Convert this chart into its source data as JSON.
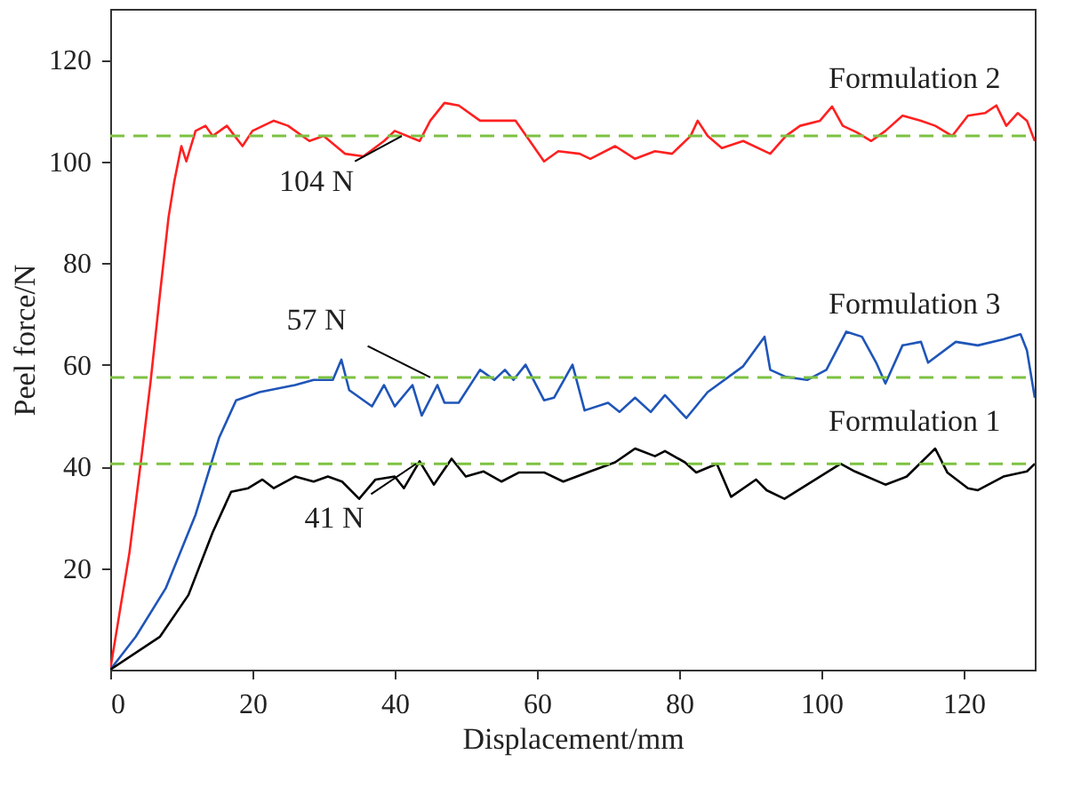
{
  "chart_data": {
    "type": "line",
    "xlabel": "Displacement/mm",
    "ylabel": "Peel force/N",
    "xlim": [
      0,
      130
    ],
    "ylim": [
      0,
      130
    ],
    "xticks": [
      0,
      20,
      40,
      60,
      80,
      100,
      120
    ],
    "yticks": [
      20,
      40,
      60,
      80,
      100,
      120
    ],
    "grid": false,
    "line_style": "solid",
    "marker": "none",
    "series": [
      {
        "name": "Formulation 2",
        "color": "#ff2020",
        "x": [
          0,
          2.7,
          4.5,
          5.7,
          7,
          8.2,
          9,
          10,
          10.7,
          12,
          13.4,
          14.4,
          16.4,
          18.6,
          20,
          23,
          25,
          28,
          30,
          33,
          35.6,
          38.5,
          40,
          43.5,
          45,
          47,
          49,
          52,
          54,
          57,
          59,
          61,
          63,
          66,
          67.5,
          71,
          73.8,
          76.6,
          79,
          81.6,
          82.6,
          84,
          86,
          89,
          92.8,
          95,
          97,
          99.8,
          101.5,
          103,
          105,
          107,
          109,
          111.4,
          114,
          116,
          118.4,
          120.6,
          123,
          124.6,
          126,
          127.6,
          128.9,
          130
        ],
        "values": [
          0,
          23,
          43,
          57,
          74,
          89,
          96,
          103,
          100,
          106,
          107,
          105,
          107,
          103,
          106,
          108,
          107,
          104,
          105,
          101.5,
          101,
          104,
          106,
          104,
          108,
          111.5,
          111,
          108,
          108,
          108,
          104,
          100,
          102,
          101.5,
          100.5,
          103,
          100.5,
          102,
          101.5,
          105,
          108,
          105,
          102.6,
          104,
          101.5,
          105,
          107,
          108,
          110.8,
          107,
          105.7,
          104,
          106,
          109,
          108,
          107,
          105,
          109,
          109.5,
          111,
          107,
          109.5,
          108,
          104
        ]
      },
      {
        "name": "Formulation 3",
        "color": "#1f55b8",
        "x": [
          0,
          3.6,
          7.8,
          12,
          15.3,
          17.7,
          21,
          26,
          28.6,
          31.3,
          32.5,
          33.6,
          36.8,
          38.5,
          40,
          42.5,
          43.8,
          46,
          47,
          49,
          52,
          54,
          55.5,
          56.7,
          58.4,
          61,
          62.4,
          65,
          66.7,
          70,
          71.6,
          73.8,
          76,
          78,
          81,
          84,
          89,
          92,
          92.8,
          95,
          98,
          100.7,
          103.5,
          105.7,
          107.7,
          109,
          111.4,
          114,
          115,
          118.9,
          122,
          125.6,
          128,
          128.9,
          130
        ],
        "values": [
          0,
          6.5,
          16,
          30.5,
          45.6,
          53,
          54.6,
          56,
          57,
          57,
          61,
          55,
          51.8,
          56,
          51.8,
          56,
          50,
          56,
          52.5,
          52.5,
          59,
          57,
          59,
          57,
          60,
          53,
          53.5,
          60,
          51,
          52.5,
          50.7,
          53.5,
          50.7,
          54,
          49.5,
          54.6,
          59.7,
          65.5,
          59,
          57.6,
          57,
          59,
          66.5,
          65.5,
          60.4,
          56.3,
          63.8,
          64.5,
          60.4,
          64.5,
          63.8,
          65,
          66,
          62.8,
          53.5
        ]
      },
      {
        "name": "Formulation 1",
        "color": "#000000",
        "x": [
          0,
          7,
          11,
          14.4,
          17,
          19.4,
          21.4,
          23,
          26,
          28.6,
          30.6,
          32.6,
          35,
          37.3,
          40,
          41.3,
          43.5,
          45.5,
          48,
          50,
          52.5,
          55,
          57.5,
          61,
          63.7,
          67.5,
          71,
          73.8,
          76.6,
          78,
          80.8,
          82.4,
          85.3,
          87.3,
          90.8,
          92.3,
          94.8,
          98,
          102.7,
          104.7,
          109,
          112,
          116,
          117.7,
          120.6,
          122,
          125.6,
          128.9,
          130
        ],
        "values": [
          0,
          6.5,
          14.7,
          27,
          35,
          35.7,
          37.4,
          35.7,
          38,
          37,
          38,
          37,
          33.6,
          37.4,
          38,
          35.7,
          41,
          36.4,
          41.5,
          38,
          39,
          37,
          38.8,
          38.8,
          37,
          39,
          40.8,
          43.5,
          42,
          43,
          40.8,
          38.8,
          40.5,
          34,
          37.4,
          35.3,
          33.6,
          36.4,
          40.5,
          39,
          36.4,
          38,
          43.5,
          38.8,
          35.7,
          35.3,
          38,
          39,
          40.5
        ]
      }
    ],
    "ref_lines": [
      {
        "axis": "y",
        "value": 105,
        "color": "#7dc242",
        "line_style": "dashed"
      },
      {
        "axis": "y",
        "value": 57.5,
        "color": "#7dc242",
        "line_style": "dashed"
      },
      {
        "axis": "y",
        "value": 40.5,
        "color": "#7dc242",
        "line_style": "dashed"
      }
    ],
    "annotations": [
      {
        "text": "104 N",
        "x": 41,
        "y": 105
      },
      {
        "text": "57 N",
        "x": 45,
        "y": 57.5
      },
      {
        "text": "41 N",
        "x": 43,
        "y": 40.5
      }
    ]
  }
}
